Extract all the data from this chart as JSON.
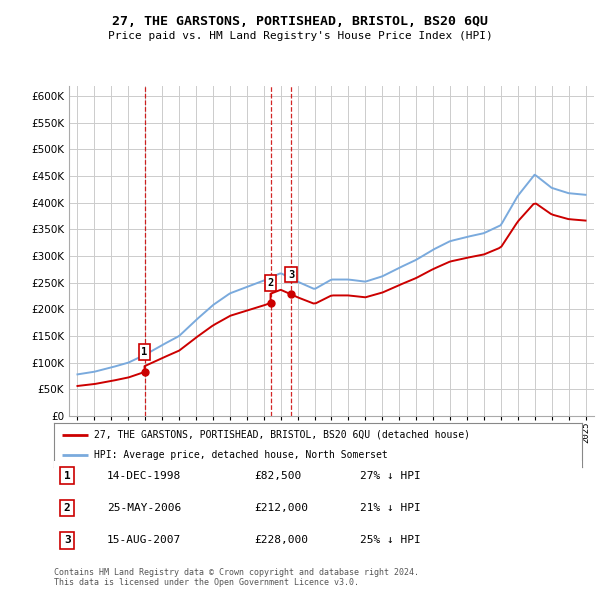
{
  "title": "27, THE GARSTONS, PORTISHEAD, BRISTOL, BS20 6QU",
  "subtitle": "Price paid vs. HM Land Registry's House Price Index (HPI)",
  "legend_label_red": "27, THE GARSTONS, PORTISHEAD, BRISTOL, BS20 6QU (detached house)",
  "legend_label_blue": "HPI: Average price, detached house, North Somerset",
  "footer": "Contains HM Land Registry data © Crown copyright and database right 2024.\nThis data is licensed under the Open Government Licence v3.0.",
  "sale_points": [
    {
      "label": "1",
      "date": "14-DEC-1998",
      "price": 82500,
      "year": 1998.96
    },
    {
      "label": "2",
      "date": "25-MAY-2006",
      "price": 212000,
      "year": 2006.4
    },
    {
      "label": "3",
      "date": "15-AUG-2007",
      "price": 228000,
      "year": 2007.62
    }
  ],
  "sale_table": [
    {
      "num": "1",
      "date": "14-DEC-1998",
      "price": "£82,500",
      "hpi": "27% ↓ HPI"
    },
    {
      "num": "2",
      "date": "25-MAY-2006",
      "price": "£212,000",
      "hpi": "21% ↓ HPI"
    },
    {
      "num": "3",
      "date": "15-AUG-2007",
      "price": "£228,000",
      "hpi": "25% ↓ HPI"
    }
  ],
  "ylim": [
    0,
    620000
  ],
  "yticks": [
    0,
    50000,
    100000,
    150000,
    200000,
    250000,
    300000,
    350000,
    400000,
    450000,
    500000,
    550000,
    600000
  ],
  "color_red": "#cc0000",
  "color_blue": "#7aaadd",
  "color_vline": "#cc0000",
  "bg_color": "#ffffff",
  "grid_color": "#cccccc",
  "hpi_years": [
    1995,
    1996,
    1997,
    1998,
    1999,
    2000,
    2001,
    2002,
    2003,
    2004,
    2005,
    2006,
    2007,
    2008,
    2009,
    2010,
    2011,
    2012,
    2013,
    2014,
    2015,
    2016,
    2017,
    2018,
    2019,
    2020,
    2021,
    2022,
    2023,
    2024,
    2025
  ],
  "hpi_values": [
    78000,
    83000,
    91000,
    100000,
    115000,
    133000,
    150000,
    180000,
    208000,
    230000,
    242000,
    254000,
    268000,
    252000,
    238000,
    256000,
    256000,
    252000,
    262000,
    278000,
    293000,
    312000,
    328000,
    336000,
    343000,
    358000,
    413000,
    453000,
    428000,
    418000,
    415000
  ]
}
